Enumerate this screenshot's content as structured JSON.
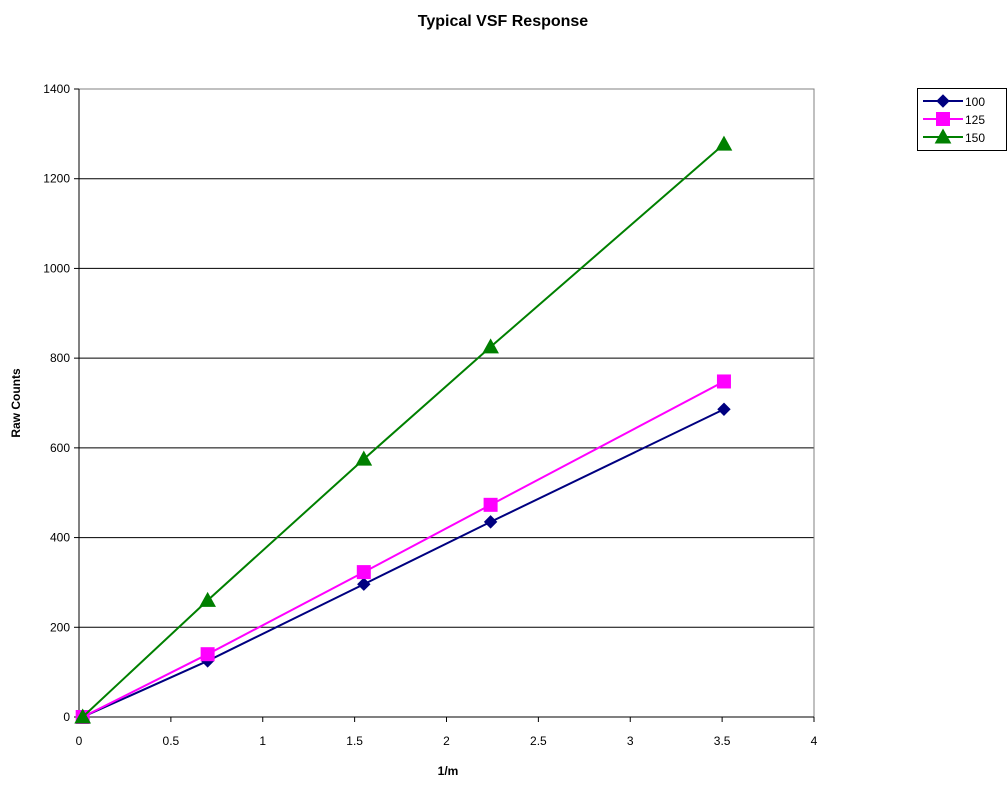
{
  "chart_data": {
    "type": "line",
    "title": "Typical VSF Response",
    "xlabel": "1/m",
    "ylabel": "Raw Counts",
    "xlim": [
      0,
      4
    ],
    "ylim": [
      0,
      1400
    ],
    "xticks": [
      0,
      0.5,
      1,
      1.5,
      2,
      2.5,
      3,
      3.5,
      4
    ],
    "yticks": [
      0,
      200,
      400,
      600,
      800,
      1000,
      1200,
      1400
    ],
    "grid": "horizontal",
    "legend_position": "top-right",
    "series": [
      {
        "name": "100",
        "color": "#000080",
        "marker": "diamond",
        "x": [
          0.02,
          0.7,
          1.55,
          2.24,
          3.51
        ],
        "y": [
          0,
          125,
          296,
          435,
          686
        ]
      },
      {
        "name": "125",
        "color": "#ff00ff",
        "marker": "square",
        "x": [
          0.02,
          0.7,
          1.55,
          2.24,
          3.51
        ],
        "y": [
          0,
          140,
          323,
          473,
          748
        ]
      },
      {
        "name": "150",
        "color": "#008000",
        "marker": "triangle",
        "x": [
          0.02,
          0.7,
          1.55,
          2.24,
          3.51
        ],
        "y": [
          0,
          260,
          575,
          825,
          1277
        ]
      }
    ]
  }
}
